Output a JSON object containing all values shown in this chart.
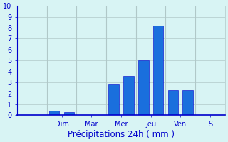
{
  "x_positions": [
    0,
    1,
    2,
    3,
    4,
    5,
    6,
    7,
    8,
    9,
    10,
    11,
    12,
    13
  ],
  "values": [
    0,
    0,
    0.4,
    0.3,
    0,
    0,
    2.8,
    3.6,
    5.0,
    8.2,
    2.3,
    2.3,
    0,
    0
  ],
  "bar_color": "#1a6fdd",
  "bar_edge_color": "#0000cc",
  "background_color": "#d8f4f4",
  "grid_color": "#b0c8c8",
  "axis_color": "#0000cc",
  "xlabel": "Précipitations 24h ( mm )",
  "xlabel_color": "#0000cc",
  "xlabel_fontsize": 8.5,
  "ylim": [
    0,
    10
  ],
  "yticks": [
    0,
    1,
    2,
    3,
    4,
    5,
    6,
    7,
    8,
    9,
    10
  ],
  "xlim": [
    -0.5,
    13.5
  ],
  "x_tick_positions": [
    2.5,
    4.5,
    6.5,
    8.5,
    10.5,
    12.5
  ],
  "x_tick_labels": [
    "Dim",
    "Mar",
    "Mer",
    "Jeu",
    "Ven",
    "S"
  ],
  "x_separator_positions": [
    1.5,
    3.5,
    5.5,
    7.5,
    9.5,
    11.5
  ],
  "tick_color": "#0000cc",
  "tick_fontsize": 7,
  "bar_width": 0.7
}
